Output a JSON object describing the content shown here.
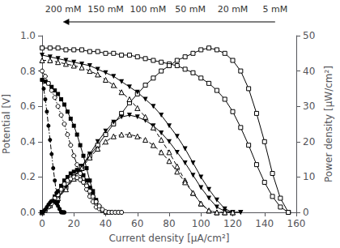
{
  "chart_data": {
    "type": "line",
    "xlabel": "Current density [μA/cm²]",
    "ylabel": "Potential [V]",
    "y2label": "Power density [μW/cm²]",
    "xlim": [
      0,
      160
    ],
    "xticks": [
      0,
      20,
      40,
      60,
      80,
      100,
      120,
      140,
      160
    ],
    "ylim": [
      0,
      1.0
    ],
    "yticks": [
      {
        "value": 0,
        "label": "0.0"
      },
      0.2,
      0.4,
      0.6,
      0.8,
      {
        "value": 1.0,
        "label": "1.0"
      }
    ],
    "y2lim": [
      0,
      50
    ],
    "y2ticks": [
      0,
      10,
      20,
      30,
      40,
      50
    ],
    "grid": false,
    "annotations": [
      "200 mM",
      "150 mM",
      "100 mM",
      "50 mM",
      "20 mM",
      "5 mM"
    ],
    "series": [
      {
        "color": "#000000",
        "marker": "square-open",
        "line_style": "solid",
        "x": [
          0,
          5,
          10,
          15,
          20,
          25,
          30,
          35,
          40,
          45,
          50,
          55,
          60,
          65,
          70,
          75,
          80,
          85,
          90,
          95,
          100,
          105,
          110,
          115,
          120,
          125,
          130,
          135,
          140,
          145,
          150,
          155
        ],
        "values": [
          0.93,
          0.93,
          0.93,
          0.92,
          0.92,
          0.92,
          0.91,
          0.91,
          0.9,
          0.9,
          0.89,
          0.89,
          0.88,
          0.87,
          0.86,
          0.85,
          0.84,
          0.83,
          0.81,
          0.79,
          0.76,
          0.73,
          0.69,
          0.64,
          0.57,
          0.48,
          0.38,
          0.27,
          0.17,
          0.09,
          0.03,
          0.0
        ]
      },
      {
        "color": "#000000",
        "marker": "square-open",
        "line_style": "solid",
        "axis": "y2",
        "x": [
          0,
          5,
          10,
          15,
          20,
          25,
          30,
          35,
          40,
          45,
          50,
          55,
          60,
          65,
          70,
          75,
          80,
          85,
          90,
          95,
          100,
          105,
          110,
          115,
          120,
          125,
          130,
          135,
          140,
          145,
          150,
          155
        ],
        "values": [
          0,
          2,
          4.5,
          7,
          10,
          13,
          16,
          19,
          22,
          25,
          28,
          31,
          33.5,
          36,
          38,
          40,
          41.5,
          43,
          44,
          45,
          46,
          46.5,
          46,
          45,
          43,
          40,
          35,
          28,
          20,
          11,
          4,
          0
        ]
      },
      {
        "color": "#000000",
        "marker": "triangle-down",
        "line_style": "solid",
        "x": [
          0,
          5,
          10,
          15,
          20,
          25,
          30,
          35,
          40,
          45,
          50,
          55,
          60,
          65,
          70,
          75,
          80,
          85,
          90,
          95,
          100,
          105,
          110,
          115,
          120,
          125
        ],
        "values": [
          0.89,
          0.88,
          0.87,
          0.86,
          0.85,
          0.84,
          0.83,
          0.81,
          0.79,
          0.77,
          0.74,
          0.71,
          0.68,
          0.64,
          0.6,
          0.55,
          0.49,
          0.43,
          0.36,
          0.28,
          0.2,
          0.13,
          0.07,
          0.02,
          0.0,
          0.0
        ]
      },
      {
        "color": "#000000",
        "marker": "triangle-down",
        "line_style": "solid",
        "axis": "y2",
        "x": [
          0,
          5,
          10,
          15,
          20,
          25,
          30,
          35,
          40,
          45,
          50,
          55,
          60,
          65,
          70,
          75,
          80,
          85,
          90,
          95,
          100,
          105,
          110,
          115,
          120,
          125
        ],
        "values": [
          0,
          2,
          4,
          7,
          10,
          13,
          16.5,
          20,
          23,
          25.5,
          27,
          27.5,
          27,
          26,
          24.5,
          22.5,
          20,
          17,
          14,
          10.5,
          7,
          4,
          1.5,
          0.3,
          0,
          0
        ]
      },
      {
        "color": "#000000",
        "marker": "triangle-up-open",
        "line_style": "dashed",
        "x": [
          0,
          5,
          10,
          15,
          20,
          25,
          30,
          35,
          40,
          45,
          50,
          55,
          60,
          65,
          70,
          75,
          80,
          85,
          90,
          95,
          100,
          105,
          110,
          115,
          120
        ],
        "values": [
          0.86,
          0.86,
          0.85,
          0.84,
          0.83,
          0.82,
          0.8,
          0.78,
          0.75,
          0.72,
          0.68,
          0.64,
          0.59,
          0.54,
          0.48,
          0.41,
          0.34,
          0.26,
          0.18,
          0.11,
          0.05,
          0.01,
          0.0,
          0.0,
          0.0
        ]
      },
      {
        "color": "#000000",
        "marker": "triangle-up-open",
        "line_style": "dashed",
        "axis": "y2",
        "x": [
          0,
          5,
          10,
          15,
          20,
          25,
          30,
          35,
          40,
          45,
          50,
          55,
          60,
          65,
          70,
          75,
          80,
          85,
          90,
          95,
          100,
          105,
          110,
          115,
          120
        ],
        "values": [
          0,
          2,
          4,
          6.5,
          9.5,
          12.5,
          15.5,
          18,
          20,
          21.5,
          22,
          22,
          21.5,
          20.5,
          19,
          17,
          14.5,
          11.5,
          8.5,
          5.5,
          2.5,
          0.5,
          0,
          0,
          0
        ]
      },
      {
        "color": "#000000",
        "marker": "square",
        "line_style": "solid",
        "x": [
          0,
          2,
          4,
          6,
          8,
          10,
          12,
          14,
          16,
          18,
          20,
          22,
          24,
          26,
          28,
          30,
          32,
          34,
          36,
          38,
          40,
          42
        ],
        "values": [
          0.75,
          0.74,
          0.73,
          0.71,
          0.69,
          0.67,
          0.64,
          0.61,
          0.57,
          0.53,
          0.49,
          0.44,
          0.38,
          0.32,
          0.25,
          0.18,
          0.12,
          0.07,
          0.03,
          0.01,
          0.0,
          0.0
        ]
      },
      {
        "color": "#000000",
        "marker": "square",
        "line_style": "solid",
        "axis": "y2",
        "x": [
          0,
          2,
          4,
          6,
          8,
          10,
          12,
          14,
          16,
          18,
          20,
          22,
          24,
          26,
          28,
          30,
          32,
          34,
          36,
          38,
          40,
          42
        ],
        "values": [
          0,
          0.5,
          1.5,
          3,
          4.5,
          6,
          7.5,
          9,
          10,
          11,
          11.5,
          12,
          11.5,
          10.5,
          9,
          7,
          5,
          3,
          1.5,
          0.5,
          0,
          0
        ]
      },
      {
        "color": "#000000",
        "marker": "circle-open",
        "line_style": "dashdot",
        "x": [
          0,
          2,
          4,
          6,
          8,
          10,
          12,
          14,
          16,
          18,
          20,
          22,
          24,
          26,
          28,
          30,
          32,
          34,
          36,
          38,
          40,
          42,
          44,
          46,
          48,
          50
        ],
        "values": [
          0.8,
          0.77,
          0.73,
          0.69,
          0.65,
          0.6,
          0.55,
          0.5,
          0.44,
          0.38,
          0.32,
          0.27,
          0.22,
          0.17,
          0.13,
          0.09,
          0.06,
          0.03,
          0.02,
          0.01,
          0.0,
          0.0,
          0.0,
          0.0,
          0.0,
          0.0
        ]
      },
      {
        "color": "#000000",
        "marker": "circle-open",
        "line_style": "dashdot",
        "axis": "y2",
        "x": [
          0,
          2,
          4,
          6,
          8,
          10,
          12,
          14,
          16,
          18,
          20,
          22,
          24,
          26,
          28,
          30,
          32,
          34,
          36,
          38,
          40,
          42,
          44,
          46,
          48,
          50
        ],
        "values": [
          0,
          0.5,
          1.5,
          2.5,
          4,
          5,
          6.5,
          8,
          9,
          9.5,
          10,
          9.8,
          9.2,
          8.5,
          7.5,
          6,
          4.5,
          3,
          1.8,
          0.8,
          0.2,
          0,
          0,
          0,
          0,
          0
        ]
      },
      {
        "color": "#000000",
        "marker": "circle",
        "line_style": "dashdot",
        "x": [
          0,
          1,
          2,
          3,
          4,
          5,
          6,
          7,
          8,
          9,
          10,
          11,
          12,
          13,
          14
        ],
        "values": [
          0.75,
          0.7,
          0.64,
          0.57,
          0.49,
          0.41,
          0.33,
          0.25,
          0.18,
          0.11,
          0.06,
          0.02,
          0.0,
          0.0,
          0.0
        ]
      },
      {
        "color": "#000000",
        "marker": "circle",
        "line_style": "dashdot",
        "axis": "y2",
        "x": [
          0,
          1,
          2,
          3,
          4,
          5,
          6,
          7,
          8,
          9,
          10,
          11,
          12,
          13,
          14
        ],
        "values": [
          0,
          0.3,
          0.8,
          1.5,
          2.2,
          2.8,
          3.2,
          3.3,
          3,
          2.5,
          1.8,
          0.9,
          0.2,
          0,
          0
        ]
      }
    ]
  }
}
